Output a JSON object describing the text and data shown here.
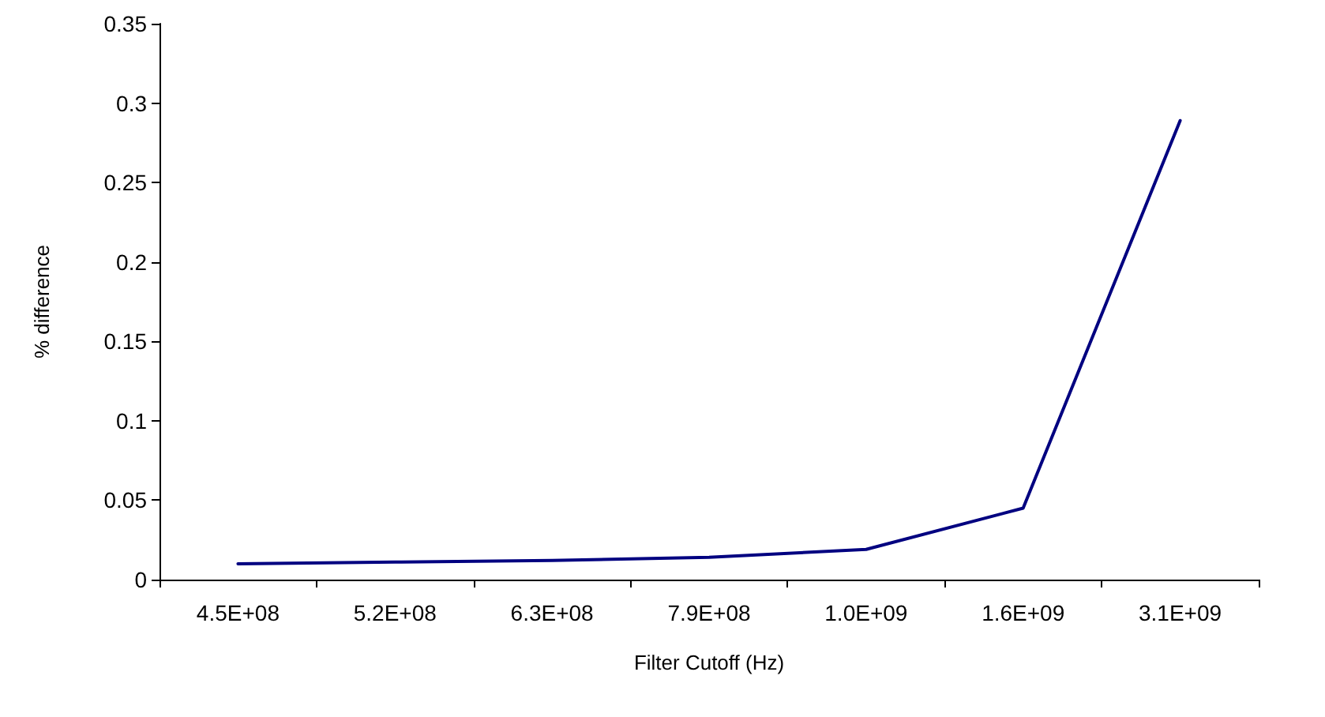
{
  "chart_data": {
    "type": "line",
    "xlabel": "Filter Cutoff (Hz)",
    "ylabel": "% difference",
    "categories": [
      "4.5E+08",
      "5.2E+08",
      "6.3E+08",
      "7.9E+08",
      "1.0E+09",
      "1.6E+09",
      "3.1E+09"
    ],
    "series": [
      {
        "color": "#000080",
        "values": [
          0.01,
          0.011,
          0.012,
          0.014,
          0.019,
          0.045,
          0.289
        ]
      }
    ],
    "ylim": [
      0,
      0.35
    ],
    "yticks": [
      0,
      0.05,
      0.1,
      0.15,
      0.2,
      0.25,
      0.3,
      0.35
    ],
    "grid": false,
    "marker": "none",
    "line_style": "solid"
  }
}
